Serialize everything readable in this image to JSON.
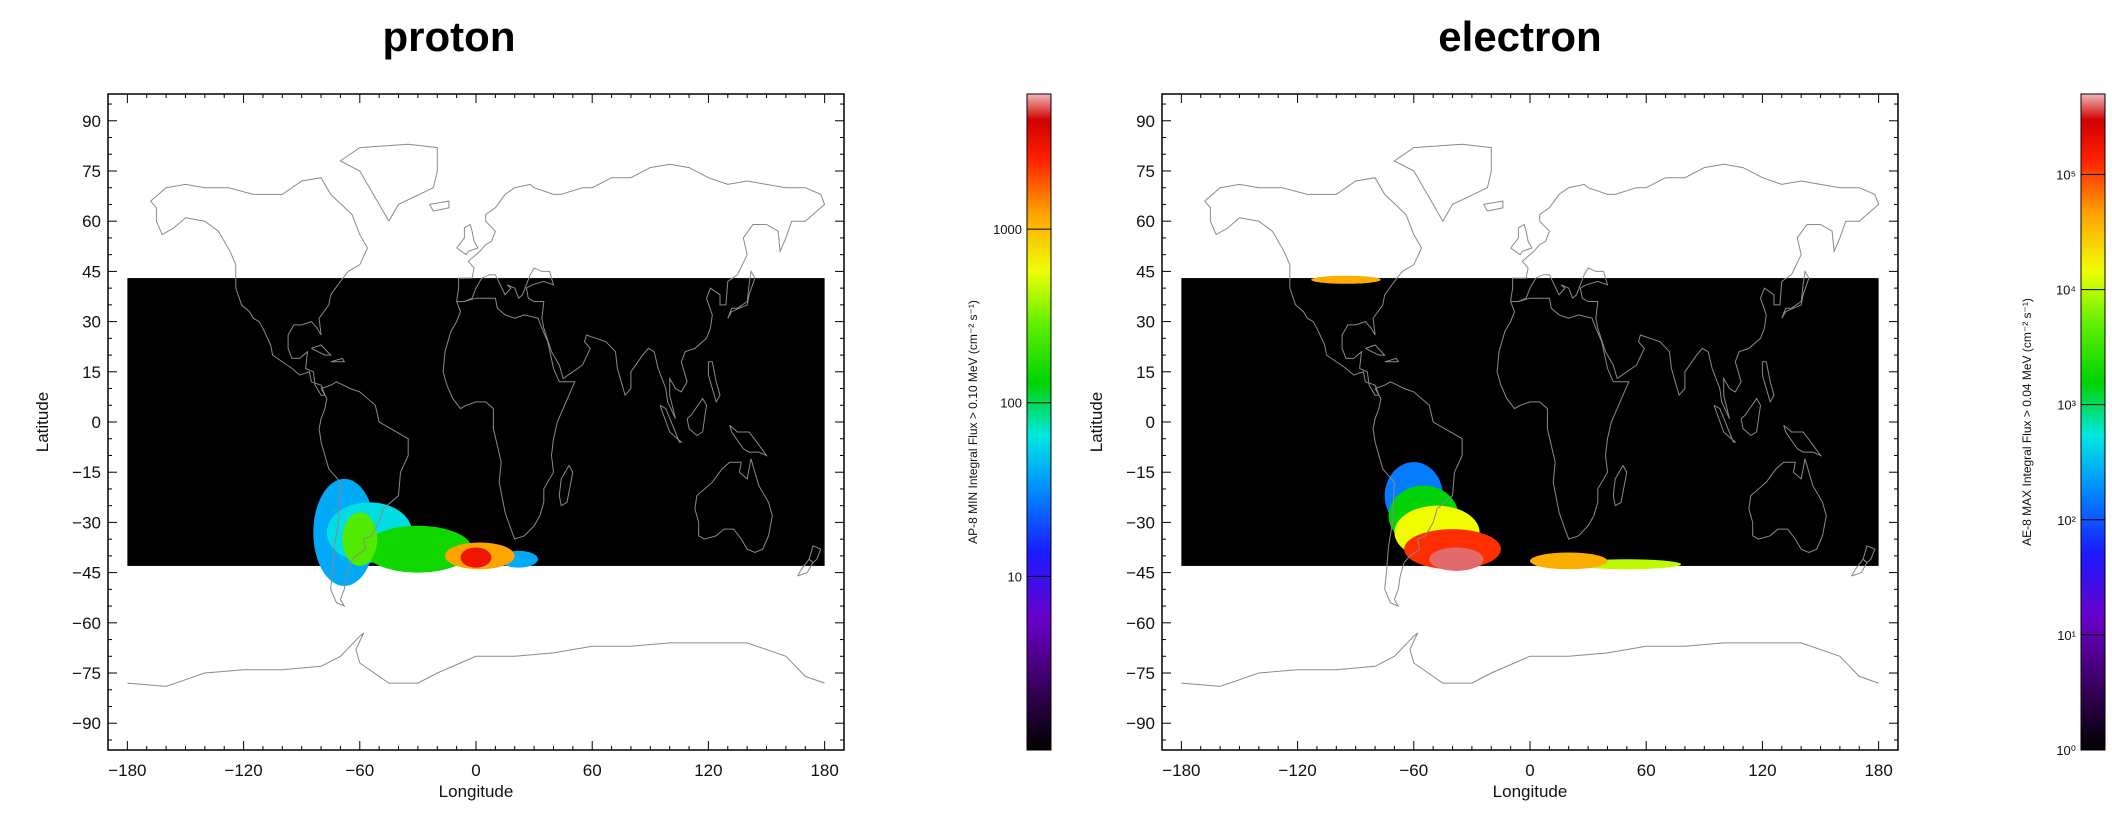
{
  "chart_data": [
    {
      "type": "heatmap",
      "title": "proton",
      "xlabel": "Longitude",
      "ylabel": "Latitude",
      "xlim": [
        -190,
        190
      ],
      "ylim": [
        -98,
        98
      ],
      "x_ticks": [
        -180,
        -120,
        -60,
        0,
        60,
        120,
        180
      ],
      "y_ticks": [
        90,
        75,
        60,
        45,
        30,
        15,
        0,
        -15,
        -30,
        -45,
        -60,
        -75,
        -90
      ],
      "grid_extent": {
        "lon": [
          -180,
          180
        ],
        "lat": [
          -43,
          43
        ]
      },
      "background_value_color": "#000000",
      "colorbar": {
        "label": "AP-8 MIN Integral Flux > 0.10 MeV (cm⁻² s⁻¹)",
        "scale": "log",
        "range": [
          1,
          6000
        ],
        "ticks": [
          {
            "value": 10,
            "label": "10"
          },
          {
            "value": 100,
            "label": "100"
          },
          {
            "value": 1000,
            "label": "1000"
          }
        ]
      },
      "flux_regions": [
        {
          "lon": -68,
          "lat": -33,
          "rx": 16,
          "ry": 16,
          "value": 40
        },
        {
          "lon": -55,
          "lat": -33,
          "rx": 22,
          "ry": 9,
          "value": 60
        },
        {
          "lon": -60,
          "lat": -35,
          "rx": 9,
          "ry": 8,
          "value": 250
        },
        {
          "lon": -30,
          "lat": -38,
          "rx": 28,
          "ry": 7,
          "value": 150
        },
        {
          "lon": 2,
          "lat": -40,
          "rx": 18,
          "ry": 4,
          "value": 1200
        },
        {
          "lon": 0,
          "lat": -40.5,
          "rx": 8,
          "ry": 3,
          "value": 3000
        },
        {
          "lon": 22,
          "lat": -41,
          "rx": 10,
          "ry": 2.5,
          "value": 40
        }
      ]
    },
    {
      "type": "heatmap",
      "title": "electron",
      "xlabel": "Longitude",
      "ylabel": "Latitude",
      "xlim": [
        -190,
        190
      ],
      "ylim": [
        -98,
        98
      ],
      "x_ticks": [
        -180,
        -120,
        -60,
        0,
        60,
        120,
        180
      ],
      "y_ticks": [
        90,
        75,
        60,
        45,
        30,
        15,
        0,
        -15,
        -30,
        -45,
        -60,
        -75,
        -90
      ],
      "grid_extent": {
        "lon": [
          -180,
          180
        ],
        "lat": [
          -43,
          43
        ]
      },
      "background_value_color": "#000000",
      "colorbar": {
        "label": "AE-8 MAX Integral Flux > 0.04 MeV (cm⁻² s⁻¹)",
        "scale": "log",
        "range": [
          1,
          500000
        ],
        "ticks": [
          {
            "value": 1,
            "label": "10⁰"
          },
          {
            "value": 10,
            "label": "10¹"
          },
          {
            "value": 100,
            "label": "10²"
          },
          {
            "value": 1000,
            "label": "10³"
          },
          {
            "value": 10000,
            "label": "10⁴"
          },
          {
            "value": 100000,
            "label": "10⁵"
          }
        ]
      },
      "flux_regions": [
        {
          "lon": -60,
          "lat": -22,
          "rx": 15,
          "ry": 10,
          "value": 150
        },
        {
          "lon": -55,
          "lat": -28,
          "rx": 18,
          "ry": 9,
          "value": 1500
        },
        {
          "lon": -48,
          "lat": -33,
          "rx": 22,
          "ry": 8,
          "value": 15000
        },
        {
          "lon": -40,
          "lat": -38,
          "rx": 25,
          "ry": 6,
          "value": 120000
        },
        {
          "lon": -38,
          "lat": -41,
          "rx": 14,
          "ry": 3.5,
          "value": 400000
        },
        {
          "lon": 20,
          "lat": -41.5,
          "rx": 20,
          "ry": 2.5,
          "value": 40000
        },
        {
          "lon": 50,
          "lat": -42.5,
          "rx": 28,
          "ry": 1.5,
          "value": 10000
        },
        {
          "lon": -95,
          "lat": 42.5,
          "rx": 18,
          "ry": 1.2,
          "value": 40000
        }
      ]
    }
  ]
}
